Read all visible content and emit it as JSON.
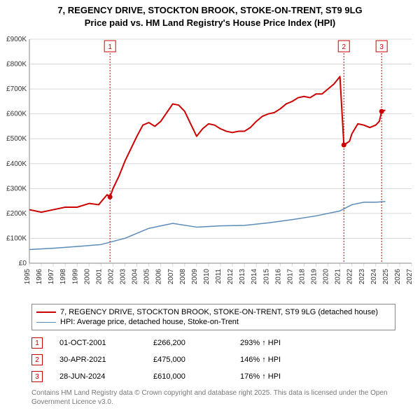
{
  "title_line1": "7, REGENCY DRIVE, STOCKTON BROOK, STOKE-ON-TRENT, ST9 9LG",
  "title_line2": "Price paid vs. HM Land Registry's House Price Index (HPI)",
  "chart": {
    "type": "line",
    "background_color": "#ffffff",
    "grid_color": "#d8d8d8",
    "axis_color": "#333333",
    "x": {
      "min": 1995,
      "max": 2027,
      "ticks": [
        1995,
        1996,
        1997,
        1998,
        1999,
        2000,
        2001,
        2002,
        2003,
        2004,
        2005,
        2006,
        2007,
        2008,
        2009,
        2010,
        2011,
        2012,
        2013,
        2014,
        2015,
        2016,
        2017,
        2018,
        2019,
        2020,
        2021,
        2022,
        2023,
        2024,
        2025,
        2026,
        2027
      ]
    },
    "y": {
      "min": 0,
      "max": 900000,
      "ticks": [
        0,
        100000,
        200000,
        300000,
        400000,
        500000,
        600000,
        700000,
        800000,
        900000
      ],
      "tick_labels": [
        "£0",
        "£100K",
        "£200K",
        "£300K",
        "£400K",
        "£500K",
        "£600K",
        "£700K",
        "£800K",
        "£900K"
      ]
    },
    "series": [
      {
        "name": "property",
        "label": "7, REGENCY DRIVE, STOCKTON BROOK, STOKE-ON-TRENT, ST9 9LG (detached house)",
        "color": "#cc0000",
        "width": 2,
        "data": [
          [
            1995,
            215000
          ],
          [
            1996,
            205000
          ],
          [
            1997,
            215000
          ],
          [
            1998,
            225000
          ],
          [
            1999,
            225000
          ],
          [
            2000,
            240000
          ],
          [
            2000.8,
            235000
          ],
          [
            2001.5,
            275000
          ],
          [
            2001.75,
            266200
          ],
          [
            2002,
            300000
          ],
          [
            2002.5,
            350000
          ],
          [
            2003,
            410000
          ],
          [
            2003.5,
            460000
          ],
          [
            2004,
            510000
          ],
          [
            2004.5,
            555000
          ],
          [
            2005,
            565000
          ],
          [
            2005.5,
            550000
          ],
          [
            2006,
            570000
          ],
          [
            2006.5,
            605000
          ],
          [
            2007,
            640000
          ],
          [
            2007.5,
            635000
          ],
          [
            2008,
            610000
          ],
          [
            2008.5,
            560000
          ],
          [
            2009,
            510000
          ],
          [
            2009.5,
            540000
          ],
          [
            2010,
            560000
          ],
          [
            2010.5,
            555000
          ],
          [
            2011,
            540000
          ],
          [
            2011.5,
            530000
          ],
          [
            2012,
            525000
          ],
          [
            2012.5,
            530000
          ],
          [
            2013,
            530000
          ],
          [
            2013.5,
            545000
          ],
          [
            2014,
            570000
          ],
          [
            2014.5,
            590000
          ],
          [
            2015,
            600000
          ],
          [
            2015.5,
            605000
          ],
          [
            2016,
            620000
          ],
          [
            2016.5,
            640000
          ],
          [
            2017,
            650000
          ],
          [
            2017.5,
            665000
          ],
          [
            2018,
            670000
          ],
          [
            2018.5,
            665000
          ],
          [
            2019,
            680000
          ],
          [
            2019.5,
            680000
          ],
          [
            2020,
            700000
          ],
          [
            2020.5,
            720000
          ],
          [
            2021,
            750000
          ],
          [
            2021.33,
            475000
          ],
          [
            2021.8,
            490000
          ],
          [
            2022,
            520000
          ],
          [
            2022.5,
            560000
          ],
          [
            2023,
            555000
          ],
          [
            2023.5,
            545000
          ],
          [
            2024,
            555000
          ],
          [
            2024.3,
            570000
          ],
          [
            2024.49,
            610000
          ],
          [
            2024.8,
            615000
          ]
        ]
      },
      {
        "name": "hpi",
        "label": "HPI: Average price, detached house, Stoke-on-Trent",
        "color": "#5b8bb8",
        "width": 1.5,
        "data": [
          [
            1995,
            55000
          ],
          [
            1997,
            60000
          ],
          [
            1999,
            67000
          ],
          [
            2001,
            75000
          ],
          [
            2003,
            100000
          ],
          [
            2005,
            140000
          ],
          [
            2007,
            160000
          ],
          [
            2009,
            145000
          ],
          [
            2011,
            150000
          ],
          [
            2013,
            152000
          ],
          [
            2015,
            162000
          ],
          [
            2017,
            175000
          ],
          [
            2019,
            190000
          ],
          [
            2021,
            210000
          ],
          [
            2022,
            235000
          ],
          [
            2023,
            245000
          ],
          [
            2024,
            245000
          ],
          [
            2024.8,
            248000
          ]
        ]
      }
    ],
    "markers": [
      {
        "n": "1",
        "x": 2001.75,
        "y": 266200,
        "color": "#cc0000"
      },
      {
        "n": "2",
        "x": 2021.33,
        "y": 475000,
        "color": "#cc0000"
      },
      {
        "n": "3",
        "x": 2024.49,
        "y": 610000,
        "color": "#cc0000"
      }
    ],
    "badge_top_offset": -6
  },
  "legend": [
    {
      "color": "#cc0000",
      "width": 2,
      "label_path": "chart.series.0.label"
    },
    {
      "color": "#5b8bb8",
      "width": 1.5,
      "label_path": "chart.series.1.label"
    }
  ],
  "events": [
    {
      "n": "1",
      "date": "01-OCT-2001",
      "price": "£266,200",
      "hpi": "293% ↑ HPI",
      "badge_color": "#cc0000"
    },
    {
      "n": "2",
      "date": "30-APR-2021",
      "price": "£475,000",
      "hpi": "146% ↑ HPI",
      "badge_color": "#cc0000"
    },
    {
      "n": "3",
      "date": "28-JUN-2024",
      "price": "£610,000",
      "hpi": "176% ↑ HPI",
      "badge_color": "#cc0000"
    }
  ],
  "footnote": "Contains HM Land Registry data © Crown copyright and database right 2025. This data is licensed under the Open Government Licence v3.0."
}
